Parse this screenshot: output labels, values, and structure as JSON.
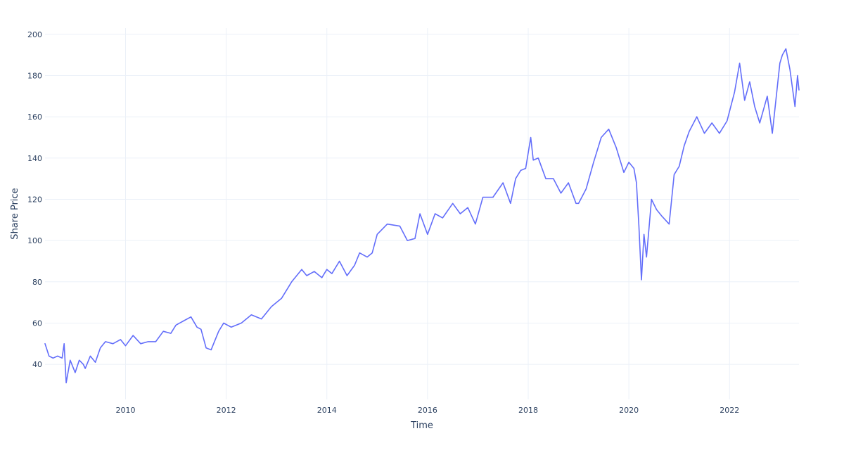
{
  "chart_data": {
    "type": "line",
    "title": "",
    "xlabel": "Time",
    "ylabel": "Share Price",
    "xlim": [
      2008.4,
      2023.38
    ],
    "ylim": [
      23,
      203
    ],
    "x_ticks": [
      2010,
      2012,
      2014,
      2016,
      2018,
      2020,
      2022
    ],
    "x_tick_labels": [
      "2010",
      "2012",
      "2014",
      "2016",
      "2018",
      "2020",
      "2022"
    ],
    "y_ticks": [
      40,
      60,
      80,
      100,
      120,
      140,
      160,
      180,
      200
    ],
    "y_tick_labels": [
      "40",
      "60",
      "80",
      "100",
      "120",
      "140",
      "160",
      "180",
      "200"
    ],
    "grid": true,
    "legend": "none",
    "colors": {
      "series": "#636efa",
      "grid": "#ebf0f8",
      "text": "#2a3f5f",
      "background": "#ffffff"
    },
    "series": [
      {
        "x": [
          2008.4,
          2008.48,
          2008.56,
          2008.65,
          2008.74,
          2008.78,
          2008.82,
          2008.9,
          2009.0,
          2009.08,
          2009.16,
          2009.2,
          2009.3,
          2009.4,
          2009.5,
          2009.6,
          2009.75,
          2009.9,
          2010.0,
          2010.15,
          2010.3,
          2010.45,
          2010.6,
          2010.75,
          2010.9,
          2011.0,
          2011.15,
          2011.3,
          2011.42,
          2011.5,
          2011.6,
          2011.7,
          2011.75,
          2011.85,
          2011.95,
          2012.1,
          2012.3,
          2012.5,
          2012.7,
          2012.9,
          2013.1,
          2013.3,
          2013.5,
          2013.6,
          2013.75,
          2013.9,
          2014.0,
          2014.1,
          2014.25,
          2014.4,
          2014.55,
          2014.65,
          2014.8,
          2014.9,
          2015.0,
          2015.2,
          2015.45,
          2015.6,
          2015.75,
          2015.85,
          2016.0,
          2016.15,
          2016.3,
          2016.5,
          2016.65,
          2016.8,
          2016.95,
          2017.1,
          2017.3,
          2017.5,
          2017.65,
          2017.75,
          2017.85,
          2017.95,
          2018.05,
          2018.1,
          2018.2,
          2018.35,
          2018.5,
          2018.65,
          2018.8,
          2018.95,
          2019.0,
          2019.15,
          2019.3,
          2019.45,
          2019.6,
          2019.75,
          2019.9,
          2020.0,
          2020.1,
          2020.15,
          2020.2,
          2020.25,
          2020.3,
          2020.35,
          2020.45,
          2020.55,
          2020.65,
          2020.8,
          2020.9,
          2021.0,
          2021.1,
          2021.2,
          2021.35,
          2021.5,
          2021.65,
          2021.8,
          2021.95,
          2022.1,
          2022.2,
          2022.3,
          2022.4,
          2022.5,
          2022.6,
          2022.75,
          2022.85,
          2023.0,
          2023.05,
          2023.12,
          2023.2,
          2023.3,
          2023.35,
          2023.38
        ],
        "y": [
          50,
          44,
          43,
          44,
          43,
          50,
          31,
          42,
          36,
          42,
          40,
          38,
          44,
          41,
          48,
          51,
          50,
          52,
          49,
          54,
          50,
          51,
          51,
          56,
          55,
          59,
          61,
          63,
          58,
          57,
          48,
          47,
          50,
          56,
          60,
          58,
          60,
          64,
          62,
          68,
          72,
          80,
          86,
          83,
          85,
          82,
          86,
          84,
          90,
          83,
          88,
          94,
          92,
          94,
          103,
          108,
          107,
          100,
          101,
          113,
          103,
          113,
          111,
          118,
          113,
          116,
          108,
          121,
          121,
          128,
          118,
          130,
          134,
          135,
          150,
          139,
          140,
          130,
          130,
          123,
          128,
          118,
          118,
          125,
          138,
          150,
          154,
          145,
          133,
          138,
          135,
          128,
          107,
          81,
          103,
          92,
          120,
          115,
          112,
          108,
          132,
          136,
          146,
          153,
          160,
          152,
          157,
          152,
          158,
          172,
          186,
          168,
          177,
          165,
          157,
          170,
          152,
          186,
          190,
          193,
          183,
          165,
          180,
          173
        ]
      }
    ]
  }
}
